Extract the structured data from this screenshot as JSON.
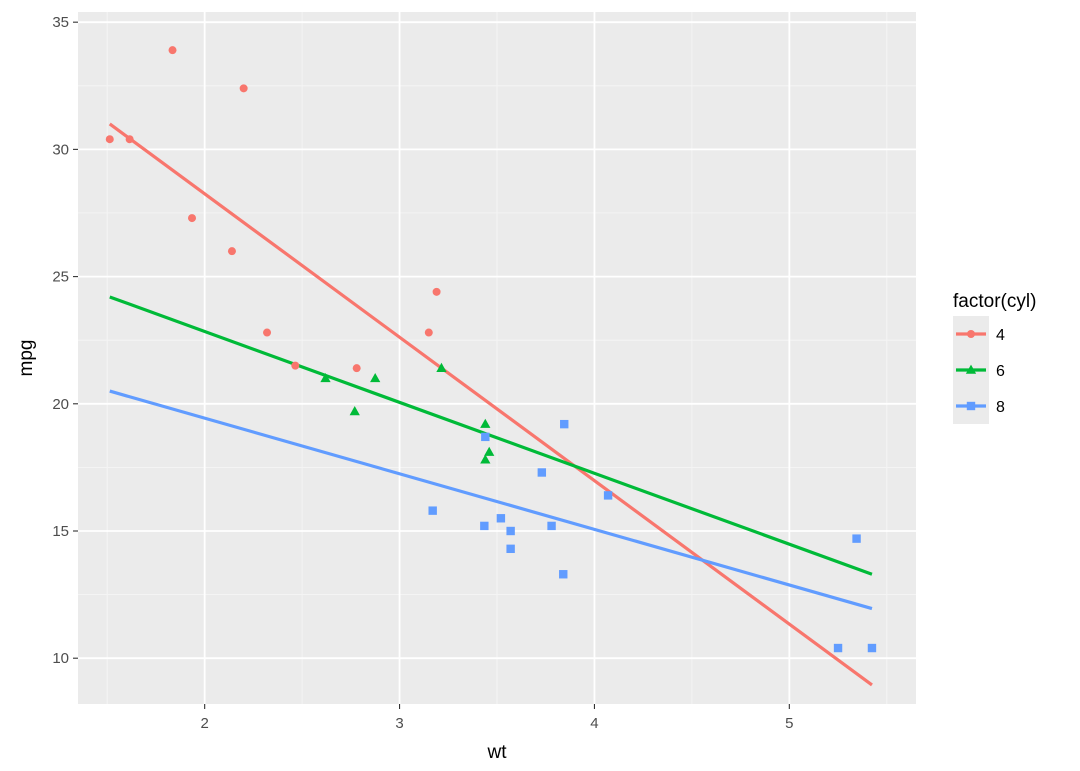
{
  "chart_data": {
    "type": "scatter",
    "xlabel": "wt",
    "ylabel": "mpg",
    "xlim": [
      1.35,
      5.65
    ],
    "ylim": [
      8.2,
      35.4
    ],
    "x_ticks": [
      2,
      3,
      4,
      5
    ],
    "y_ticks": [
      10,
      15,
      20,
      25,
      30,
      35
    ],
    "x_tick_labels": [
      "2",
      "3",
      "4",
      "5"
    ],
    "y_tick_labels": [
      "10",
      "15",
      "20",
      "25",
      "30",
      "35"
    ],
    "grid": true,
    "legend": {
      "title": "factor(cyl)",
      "position": "right",
      "entries": [
        "4",
        "6",
        "8"
      ]
    },
    "series": [
      {
        "name": "4",
        "color": "#f8766d",
        "marker": "circle",
        "points": [
          {
            "x": 2.32,
            "y": 22.8
          },
          {
            "x": 3.19,
            "y": 24.4
          },
          {
            "x": 3.15,
            "y": 22.8
          },
          {
            "x": 2.2,
            "y": 32.4
          },
          {
            "x": 1.615,
            "y": 30.4
          },
          {
            "x": 1.835,
            "y": 33.9
          },
          {
            "x": 2.465,
            "y": 21.5
          },
          {
            "x": 1.935,
            "y": 27.3
          },
          {
            "x": 2.14,
            "y": 26.0
          },
          {
            "x": 1.513,
            "y": 30.4
          },
          {
            "x": 2.78,
            "y": 21.4
          }
        ],
        "fit": {
          "x": [
            1.513,
            5.424
          ],
          "y": [
            31.0,
            8.95
          ]
        }
      },
      {
        "name": "6",
        "color": "#00ba38",
        "marker": "triangle",
        "points": [
          {
            "x": 2.62,
            "y": 21.0
          },
          {
            "x": 2.875,
            "y": 21.0
          },
          {
            "x": 3.215,
            "y": 21.4
          },
          {
            "x": 3.44,
            "y": 19.2
          },
          {
            "x": 3.44,
            "y": 17.8
          },
          {
            "x": 3.46,
            "y": 18.1
          },
          {
            "x": 2.77,
            "y": 19.7
          }
        ],
        "fit": {
          "x": [
            1.513,
            5.424
          ],
          "y": [
            24.2,
            13.3
          ]
        }
      },
      {
        "name": "8",
        "color": "#619cff",
        "marker": "square",
        "points": [
          {
            "x": 3.44,
            "y": 18.7
          },
          {
            "x": 3.57,
            "y": 14.3
          },
          {
            "x": 4.07,
            "y": 16.4
          },
          {
            "x": 3.73,
            "y": 17.3
          },
          {
            "x": 3.78,
            "y": 15.2
          },
          {
            "x": 5.25,
            "y": 10.4
          },
          {
            "x": 5.424,
            "y": 10.4
          },
          {
            "x": 5.345,
            "y": 14.7
          },
          {
            "x": 3.52,
            "y": 15.5
          },
          {
            "x": 3.435,
            "y": 15.2
          },
          {
            "x": 3.84,
            "y": 13.3
          },
          {
            "x": 3.845,
            "y": 19.2
          },
          {
            "x": 3.17,
            "y": 15.8
          },
          {
            "x": 3.57,
            "y": 15.0
          }
        ],
        "fit": {
          "x": [
            1.513,
            5.424
          ],
          "y": [
            20.5,
            11.95
          ]
        }
      }
    ]
  }
}
